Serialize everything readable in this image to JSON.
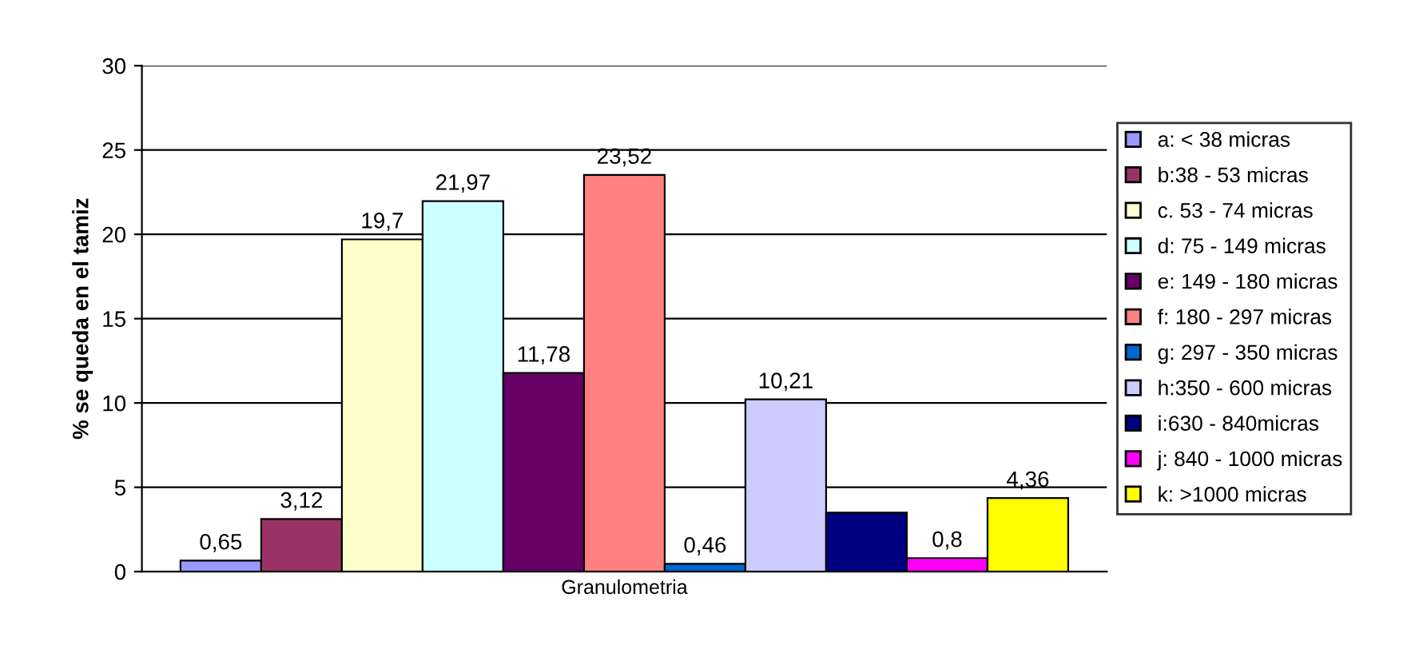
{
  "chart_data": {
    "type": "bar",
    "categories": [
      "Granulometria"
    ],
    "ylabel": "% se queda en el tamiz",
    "ylim": [
      0,
      30
    ],
    "yticks": [
      0,
      5,
      10,
      15,
      20,
      25,
      30
    ],
    "grid": "y",
    "legend": "right",
    "series": [
      {
        "name": "a: < 38 micras",
        "color": "#9999ff",
        "values": [
          0.65
        ],
        "value_labels": [
          "0,65"
        ]
      },
      {
        "name": "b:38 - 53 micras",
        "color": "#993366",
        "values": [
          3.12
        ],
        "value_labels": [
          "3,12"
        ]
      },
      {
        "name": "c. 53 - 74 micras",
        "color": "#ffffcc",
        "values": [
          19.7
        ],
        "value_labels": [
          "19,7"
        ]
      },
      {
        "name": "d: 75 - 149 micras",
        "color": "#ccffff",
        "values": [
          21.97
        ],
        "value_labels": [
          "21,97"
        ]
      },
      {
        "name": "e: 149 - 180 micras",
        "color": "#660066",
        "values": [
          11.78
        ],
        "value_labels": [
          "11,78"
        ]
      },
      {
        "name": "f: 180 - 297 micras",
        "color": "#ff8080",
        "values": [
          23.52
        ],
        "value_labels": [
          "23,52"
        ]
      },
      {
        "name": "g: 297 - 350 micras",
        "color": "#0066cc",
        "values": [
          0.46
        ],
        "value_labels": [
          "0,46"
        ]
      },
      {
        "name": "h:350 - 600 micras",
        "color": "#ccccff",
        "values": [
          10.21
        ],
        "value_labels": [
          "10,21"
        ]
      },
      {
        "name": "i:630 - 840micras",
        "color": "#000080",
        "values": [
          3.5
        ],
        "value_labels": [
          null
        ]
      },
      {
        "name": "j: 840 - 1000 micras",
        "color": "#ff00ff",
        "values": [
          0.8
        ],
        "value_labels": [
          "0,8"
        ]
      },
      {
        "name": "k: >1000 micras",
        "color": "#ffff00",
        "values": [
          4.36
        ],
        "value_labels": [
          "4,36"
        ]
      }
    ]
  }
}
